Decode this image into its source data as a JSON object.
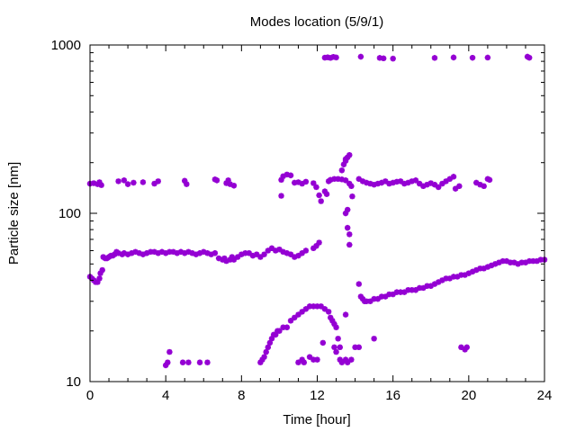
{
  "chart_data": {
    "type": "scatter",
    "title": "Modes location (5/9/1)",
    "xlabel": "Time [hour]",
    "ylabel": "Particle size [nm]",
    "xlim": [
      0,
      24
    ],
    "ylim": [
      10,
      1000
    ],
    "yscale": "log",
    "xticks": [
      0,
      4,
      8,
      12,
      16,
      20,
      24
    ],
    "xtick_labels": [
      "0",
      "4",
      "8",
      "12",
      "16",
      "20",
      "24"
    ],
    "yticks": [
      10,
      100,
      1000
    ],
    "ytick_labels": [
      "10",
      "100",
      "1000"
    ],
    "grid": false,
    "legend": "none",
    "marker": "asterisk",
    "color": "#9400d3",
    "series": [
      {
        "points": [
          [
            0.0,
            42
          ],
          [
            0.1,
            41
          ],
          [
            0.2,
            40
          ],
          [
            0.3,
            39
          ],
          [
            0.4,
            39
          ],
          [
            0.5,
            41
          ],
          [
            0.55,
            44
          ],
          [
            0.65,
            46
          ],
          [
            0.7,
            55
          ],
          [
            0.8,
            54
          ],
          [
            0.9,
            54
          ],
          [
            1.0,
            55
          ],
          [
            1.1,
            56
          ],
          [
            1.2,
            56
          ],
          [
            1.3,
            57
          ],
          [
            1.4,
            59
          ],
          [
            1.5,
            58
          ],
          [
            1.7,
            57
          ],
          [
            1.8,
            58
          ],
          [
            2.0,
            57
          ],
          [
            2.2,
            58
          ],
          [
            2.4,
            59
          ],
          [
            2.6,
            58
          ],
          [
            2.8,
            57
          ],
          [
            3.0,
            58
          ],
          [
            3.2,
            59
          ],
          [
            3.4,
            59
          ],
          [
            3.6,
            58
          ],
          [
            3.8,
            59
          ],
          [
            4.0,
            58
          ],
          [
            4.2,
            59
          ],
          [
            4.4,
            59
          ],
          [
            4.6,
            58
          ],
          [
            4.8,
            59
          ],
          [
            5.0,
            58
          ],
          [
            5.2,
            59
          ],
          [
            5.4,
            58
          ],
          [
            5.6,
            57
          ],
          [
            5.8,
            58
          ],
          [
            6.0,
            59
          ],
          [
            6.2,
            58
          ],
          [
            6.4,
            57
          ],
          [
            6.6,
            58
          ],
          [
            6.8,
            54
          ],
          [
            7.0,
            53
          ],
          [
            7.1,
            54
          ],
          [
            7.2,
            52
          ],
          [
            7.4,
            53
          ],
          [
            7.5,
            55
          ],
          [
            7.6,
            53
          ],
          [
            7.8,
            55
          ],
          [
            8.0,
            57
          ],
          [
            8.2,
            58
          ],
          [
            8.4,
            58
          ],
          [
            8.6,
            56
          ],
          [
            8.8,
            57
          ],
          [
            9.0,
            55
          ],
          [
            9.2,
            57
          ],
          [
            9.4,
            60
          ],
          [
            9.6,
            62
          ],
          [
            9.8,
            60
          ],
          [
            10.0,
            61
          ],
          [
            10.2,
            59
          ],
          [
            10.4,
            58
          ],
          [
            10.6,
            57
          ],
          [
            10.8,
            55
          ],
          [
            11.0,
            56
          ],
          [
            11.2,
            58
          ],
          [
            11.4,
            60
          ],
          [
            11.8,
            62
          ],
          [
            11.95,
            64
          ],
          [
            12.1,
            67
          ]
        ]
      },
      {
        "points": [
          [
            0.0,
            150
          ],
          [
            0.2,
            151
          ],
          [
            0.4,
            149
          ],
          [
            0.5,
            153
          ],
          [
            0.6,
            147
          ],
          [
            1.5,
            155
          ],
          [
            1.8,
            157
          ],
          [
            2.0,
            149
          ],
          [
            2.3,
            152
          ],
          [
            2.8,
            153
          ],
          [
            3.4,
            150
          ],
          [
            3.6,
            155
          ],
          [
            5.0,
            156
          ],
          [
            5.1,
            149
          ],
          [
            6.6,
            159
          ],
          [
            6.7,
            157
          ],
          [
            7.2,
            151
          ],
          [
            7.3,
            157
          ],
          [
            7.4,
            149
          ],
          [
            7.6,
            146
          ],
          [
            10.1,
            158
          ],
          [
            10.2,
            166
          ],
          [
            10.4,
            170
          ],
          [
            10.6,
            168
          ],
          [
            10.8,
            152
          ],
          [
            11.0,
            153
          ],
          [
            11.2,
            150
          ],
          [
            11.4,
            154
          ],
          [
            11.8,
            151
          ],
          [
            11.95,
            143
          ],
          [
            12.1,
            128
          ],
          [
            12.2,
            118
          ],
          [
            12.4,
            135
          ],
          [
            12.5,
            130
          ],
          [
            12.6,
            155
          ],
          [
            12.7,
            158
          ],
          [
            12.9,
            160
          ],
          [
            13.1,
            160
          ],
          [
            13.3,
            159
          ],
          [
            13.5,
            157
          ],
          [
            13.7,
            150
          ],
          [
            13.8,
            145
          ],
          [
            14.2,
            160
          ],
          [
            14.4,
            155
          ],
          [
            14.6,
            152
          ],
          [
            14.8,
            150
          ],
          [
            15.0,
            148
          ],
          [
            15.2,
            150
          ],
          [
            15.4,
            152
          ],
          [
            15.6,
            155
          ],
          [
            15.8,
            150
          ],
          [
            16.0,
            152
          ],
          [
            16.2,
            154
          ],
          [
            16.4,
            155
          ],
          [
            16.6,
            150
          ],
          [
            16.8,
            152
          ],
          [
            17.0,
            155
          ],
          [
            17.2,
            157
          ],
          [
            17.4,
            150
          ],
          [
            17.6,
            145
          ],
          [
            17.8,
            148
          ],
          [
            18.0,
            151
          ],
          [
            18.2,
            148
          ],
          [
            18.4,
            143
          ],
          [
            18.6,
            150
          ],
          [
            18.8,
            155
          ],
          [
            19.0,
            160
          ],
          [
            19.2,
            165
          ],
          [
            19.3,
            140
          ],
          [
            19.5,
            145
          ],
          [
            20.4,
            152
          ],
          [
            20.6,
            148
          ],
          [
            20.8,
            145
          ],
          [
            21.0,
            160
          ],
          [
            21.1,
            158
          ],
          [
            10.1,
            127
          ],
          [
            13.85,
            126
          ]
        ]
      },
      {
        "points": [
          [
            12.4,
            841
          ],
          [
            12.55,
            845
          ],
          [
            12.7,
            838
          ],
          [
            12.85,
            850
          ],
          [
            13.0,
            843
          ],
          [
            14.3,
            852
          ],
          [
            15.3,
            838
          ],
          [
            15.5,
            833
          ],
          [
            16.0,
            830
          ],
          [
            18.2,
            838
          ],
          [
            19.2,
            843
          ],
          [
            20.2,
            840
          ],
          [
            21.0,
            842
          ],
          [
            23.1,
            852
          ],
          [
            23.2,
            840
          ]
        ]
      },
      {
        "points": [
          [
            13.3,
            180
          ],
          [
            13.4,
            195
          ],
          [
            13.5,
            205
          ],
          [
            13.6,
            215
          ],
          [
            13.7,
            222
          ],
          [
            13.5,
            210
          ],
          [
            13.6,
            105
          ],
          [
            13.5,
            100
          ],
          [
            13.6,
            82
          ],
          [
            13.7,
            75
          ],
          [
            13.7,
            65
          ]
        ]
      },
      {
        "points": [
          [
            14.2,
            38
          ],
          [
            14.3,
            32
          ],
          [
            14.4,
            31
          ],
          [
            14.5,
            30
          ],
          [
            14.6,
            30
          ],
          [
            14.8,
            30
          ],
          [
            15.0,
            31
          ],
          [
            15.2,
            31
          ],
          [
            15.4,
            32
          ],
          [
            15.6,
            32
          ],
          [
            15.8,
            33
          ],
          [
            16.0,
            33
          ],
          [
            16.2,
            34
          ],
          [
            16.4,
            34
          ],
          [
            16.6,
            34
          ],
          [
            16.8,
            35
          ],
          [
            17.0,
            35
          ],
          [
            17.2,
            35
          ],
          [
            17.4,
            36
          ],
          [
            17.6,
            36
          ],
          [
            17.8,
            37
          ],
          [
            18.0,
            37
          ],
          [
            18.2,
            38
          ],
          [
            18.4,
            39
          ],
          [
            18.6,
            40
          ],
          [
            18.8,
            41
          ],
          [
            19.0,
            41
          ],
          [
            19.2,
            42
          ],
          [
            19.4,
            42
          ],
          [
            19.6,
            43
          ],
          [
            19.8,
            43
          ],
          [
            20.0,
            44
          ],
          [
            20.2,
            45
          ],
          [
            20.4,
            46
          ],
          [
            20.6,
            47
          ],
          [
            20.8,
            47
          ],
          [
            21.0,
            48
          ],
          [
            21.2,
            49
          ],
          [
            21.4,
            50
          ],
          [
            21.6,
            51
          ],
          [
            21.8,
            52
          ],
          [
            22.0,
            52
          ],
          [
            22.2,
            51
          ],
          [
            22.4,
            51
          ],
          [
            22.6,
            50
          ],
          [
            22.8,
            51
          ],
          [
            23.0,
            51
          ],
          [
            23.2,
            52
          ],
          [
            23.4,
            52
          ],
          [
            23.6,
            52
          ],
          [
            23.8,
            53
          ],
          [
            24.0,
            53
          ]
        ]
      },
      {
        "points": [
          [
            9.0,
            13
          ],
          [
            9.1,
            13.5
          ],
          [
            9.2,
            14
          ],
          [
            9.3,
            15
          ],
          [
            9.4,
            16
          ],
          [
            9.5,
            17
          ],
          [
            9.6,
            18
          ],
          [
            9.7,
            19
          ],
          [
            9.8,
            19
          ],
          [
            9.9,
            20
          ],
          [
            10.0,
            20
          ],
          [
            10.2,
            21
          ],
          [
            10.4,
            21
          ],
          [
            10.6,
            23
          ],
          [
            10.8,
            24
          ],
          [
            11.0,
            25
          ],
          [
            11.2,
            26
          ],
          [
            11.4,
            27
          ],
          [
            11.6,
            28
          ],
          [
            11.8,
            28
          ],
          [
            12.0,
            28
          ],
          [
            12.2,
            28
          ],
          [
            12.4,
            27
          ],
          [
            12.6,
            26
          ],
          [
            12.7,
            24
          ],
          [
            12.8,
            23
          ],
          [
            12.9,
            22
          ],
          [
            13.0,
            21
          ],
          [
            13.1,
            18
          ],
          [
            13.2,
            16
          ],
          [
            13.5,
            25
          ],
          [
            14.0,
            16
          ]
        ]
      },
      {
        "points": [
          [
            4.0,
            12.5
          ],
          [
            4.1,
            13
          ],
          [
            4.2,
            15
          ],
          [
            4.9,
            13
          ],
          [
            5.2,
            13
          ],
          [
            5.8,
            13
          ],
          [
            6.2,
            13
          ],
          [
            11.0,
            13
          ],
          [
            11.2,
            13.5
          ],
          [
            11.3,
            13
          ],
          [
            11.6,
            14
          ],
          [
            11.8,
            13.5
          ],
          [
            12.0,
            13.5
          ],
          [
            12.3,
            17
          ],
          [
            12.9,
            16
          ],
          [
            13.0,
            15
          ],
          [
            13.2,
            13.5
          ],
          [
            13.3,
            13
          ],
          [
            13.5,
            13.5
          ],
          [
            13.6,
            13
          ],
          [
            13.8,
            13.5
          ],
          [
            14.2,
            16
          ],
          [
            15.0,
            18
          ],
          [
            19.6,
            16
          ],
          [
            19.8,
            15.5
          ],
          [
            19.9,
            16
          ]
        ]
      }
    ]
  }
}
